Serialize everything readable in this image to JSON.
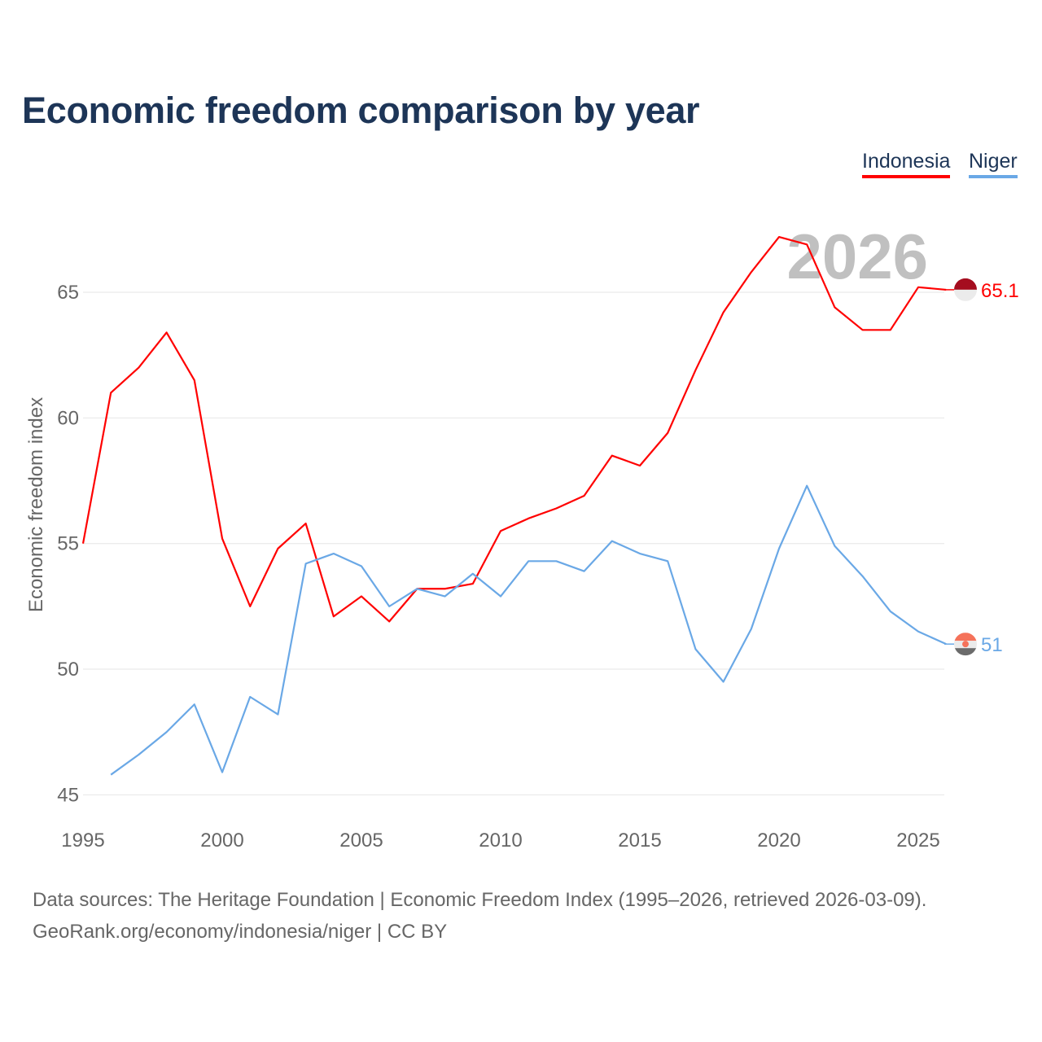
{
  "title": "Economic freedom comparison by year",
  "footer": {
    "line1": "Data sources: The Heritage Foundation | Economic Freedom Index (1995–2026, retrieved 2026-03-09).",
    "line2": "GeoRank.org/economy/indonesia/niger | CC BY"
  },
  "chart_data": {
    "type": "line",
    "title": "Economic freedom comparison by year",
    "xlabel": "",
    "ylabel": "Economic freedom index",
    "xlim": [
      1995,
      2026
    ],
    "ylim": [
      45,
      68
    ],
    "x_ticks": [
      "1995",
      "2000",
      "2005",
      "2010",
      "2015",
      "2020",
      "2025"
    ],
    "y_ticks": [
      "45",
      "50",
      "55",
      "60",
      "65"
    ],
    "grid": "horizontal",
    "legend_placement": "top-right",
    "year_watermark": "2026",
    "series": [
      {
        "name": "Indonesia",
        "color": "#ff0000",
        "end_label": "65.1",
        "x": [
          1995,
          1996,
          1997,
          1998,
          1999,
          2000,
          2001,
          2002,
          2003,
          2004,
          2005,
          2006,
          2007,
          2008,
          2009,
          2010,
          2011,
          2012,
          2013,
          2014,
          2015,
          2016,
          2017,
          2018,
          2019,
          2020,
          2021,
          2022,
          2023,
          2024,
          2025,
          2026
        ],
        "values": [
          55.0,
          61.0,
          62.0,
          63.4,
          61.5,
          55.2,
          52.5,
          54.8,
          55.8,
          52.1,
          52.9,
          51.9,
          53.2,
          53.2,
          53.4,
          55.5,
          56.0,
          56.4,
          56.9,
          58.5,
          58.1,
          59.4,
          61.9,
          64.2,
          65.8,
          67.2,
          66.9,
          64.4,
          63.5,
          63.5,
          65.2,
          65.1
        ]
      },
      {
        "name": "Niger",
        "color": "#6aa8e6",
        "end_label": "51",
        "x": [
          1996,
          1997,
          1998,
          1999,
          2000,
          2001,
          2002,
          2003,
          2004,
          2005,
          2006,
          2007,
          2008,
          2009,
          2010,
          2011,
          2012,
          2013,
          2014,
          2015,
          2016,
          2017,
          2018,
          2019,
          2020,
          2021,
          2022,
          2023,
          2024,
          2025,
          2026
        ],
        "values": [
          45.8,
          46.6,
          47.5,
          48.6,
          45.9,
          48.9,
          48.2,
          54.2,
          54.6,
          54.1,
          52.5,
          53.2,
          52.9,
          53.8,
          52.9,
          54.3,
          54.3,
          53.9,
          55.1,
          54.6,
          54.3,
          50.8,
          49.5,
          51.6,
          54.8,
          57.3,
          54.9,
          53.7,
          52.3,
          51.5,
          51.0
        ]
      }
    ]
  }
}
